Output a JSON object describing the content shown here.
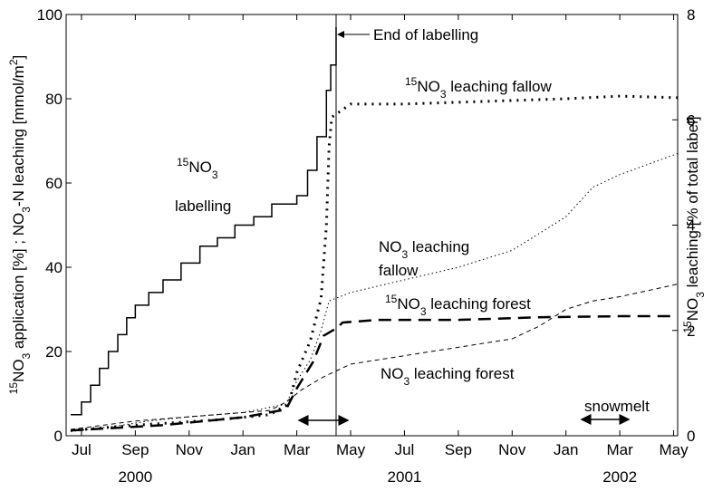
{
  "chart_data": {
    "type": "line",
    "xlim": [
      5.43,
      28.15
    ],
    "xticks": [
      {
        "value": 6,
        "label": "Jul"
      },
      {
        "value": 8,
        "label": "Sep"
      },
      {
        "value": 10,
        "label": "Nov"
      },
      {
        "value": 12,
        "label": "Jan"
      },
      {
        "value": 14,
        "label": "Mar"
      },
      {
        "value": 16,
        "label": "May"
      },
      {
        "value": 18,
        "label": "Jul"
      },
      {
        "value": 20,
        "label": "Sep"
      },
      {
        "value": 22,
        "label": "Nov"
      },
      {
        "value": 24,
        "label": "Jan"
      },
      {
        "value": 26,
        "label": "Mar"
      },
      {
        "value": 28,
        "label": "May"
      }
    ],
    "year_labels": [
      {
        "value": 8,
        "label": "2000"
      },
      {
        "value": 18,
        "label": "2001"
      },
      {
        "value": 26,
        "label": "2002"
      }
    ],
    "ylim": [
      0,
      100
    ],
    "yticks": [
      0,
      20,
      40,
      60,
      80,
      100
    ],
    "y2lim": [
      0,
      8
    ],
    "y2ticks": [
      0,
      2,
      4,
      6,
      8
    ],
    "ylabel": [
      {
        "t": "15",
        "s": "sup"
      },
      {
        "t": "NO"
      },
      {
        "t": "3",
        "s": "sub"
      },
      {
        "t": " application [%] ;  NO"
      },
      {
        "t": "3",
        "s": "sub"
      },
      {
        "t": "-N leaching [mmol/m"
      },
      {
        "t": "2",
        "s": "sup"
      },
      {
        "t": "]"
      }
    ],
    "y2label": [
      {
        "t": "15",
        "s": "sup"
      },
      {
        "t": "NO"
      },
      {
        "t": "3",
        "s": "sub"
      },
      {
        "t": " leaching [% of total label]"
      }
    ],
    "end_of_labelling": 15.46,
    "series": [
      {
        "name": "labelling",
        "color": "#000",
        "dash": "solid",
        "width": 1.5,
        "step": true,
        "x": [
          5.6,
          6,
          6.34,
          6.67,
          7,
          7.35,
          7.68,
          8,
          8.5,
          9.03,
          9.7,
          10.4,
          11.05,
          11.7,
          12.4,
          13.07,
          14,
          14.4,
          14.75,
          15.1,
          15.26,
          15.46
        ],
        "values": [
          5,
          8,
          12,
          16,
          20,
          24,
          28,
          31,
          34,
          37,
          41,
          45,
          47,
          50,
          52,
          55,
          57,
          63,
          71,
          82,
          88,
          97
        ]
      },
      {
        "name": "15NO3 leaching fallow",
        "color": "#000",
        "dash": "2 6",
        "width": 3,
        "axis": "y2",
        "x": [
          5.6,
          8,
          11,
          13,
          13.7,
          14,
          14.5,
          14.9,
          15.1,
          15.2,
          15.3,
          16,
          18,
          21,
          24,
          26,
          28.15
        ],
        "values": [
          0.1,
          0.2,
          0.3,
          0.4,
          0.6,
          1.2,
          1.8,
          2.6,
          4,
          5.5,
          6.05,
          6.3,
          6.3,
          6.35,
          6.4,
          6.45,
          6.42
        ]
      },
      {
        "name": "NO3 leaching fallow",
        "color": "#000",
        "dash": "1.5 3",
        "width": 1,
        "x": [
          5.6,
          7.5,
          8.5,
          10,
          12,
          13.6,
          14,
          14.5,
          14.9,
          15.2,
          16,
          18,
          20,
          22,
          24,
          25,
          26,
          28.15
        ],
        "values": [
          1,
          2.5,
          3.5,
          4.5,
          5.5,
          7.5,
          13,
          18,
          25,
          32,
          34,
          37,
          40,
          44,
          52,
          59,
          62,
          67
        ]
      },
      {
        "name": "15NO3 leaching forest",
        "color": "#000",
        "dash": "14 8",
        "width": 2.5,
        "axis": "y2",
        "x": [
          5.6,
          9,
          12,
          13.6,
          14,
          14.6,
          15,
          15.5,
          15.7,
          17,
          20,
          23,
          26,
          28.15
        ],
        "values": [
          0.1,
          0.2,
          0.35,
          0.5,
          0.9,
          1.4,
          1.9,
          2.05,
          2.15,
          2.2,
          2.2,
          2.25,
          2.27,
          2.27
        ]
      },
      {
        "name": "NO3 leaching forest",
        "color": "#000",
        "dash": "5 4",
        "width": 1,
        "x": [
          5.6,
          8,
          11,
          13,
          13.6,
          14.2,
          15,
          16,
          18,
          20,
          22,
          23,
          24,
          25,
          26,
          28.15
        ],
        "values": [
          1.5,
          3.5,
          5,
          6,
          8,
          11,
          14,
          17,
          19,
          21,
          23,
          26,
          30,
          32,
          33,
          36
        ]
      }
    ],
    "annotations": [
      [
        {
          "t": "End of labelling"
        }
      ],
      [
        {
          "t": "15",
          "s": "sup"
        },
        {
          "t": "NO"
        },
        {
          "t": "3",
          "s": "sub"
        },
        {
          "t": " leaching fallow"
        }
      ],
      [
        {
          "t": "15",
          "s": "sup"
        },
        {
          "t": "NO"
        },
        {
          "t": "3",
          "s": "sub"
        }
      ],
      [
        {
          "t": "labelling"
        }
      ],
      [
        {
          "t": "NO"
        },
        {
          "t": "3",
          "s": "sub"
        },
        {
          "t": " leaching"
        }
      ],
      [
        {
          "t": "fallow"
        }
      ],
      [
        {
          "t": "15",
          "s": "sup"
        },
        {
          "t": "NO"
        },
        {
          "t": "3",
          "s": "sub"
        },
        {
          "t": " leaching forest"
        }
      ],
      [
        {
          "t": "NO"
        },
        {
          "t": "3",
          "s": "sub"
        },
        {
          "t": " leaching forest"
        }
      ],
      [
        {
          "t": "snowmelt"
        }
      ]
    ]
  }
}
